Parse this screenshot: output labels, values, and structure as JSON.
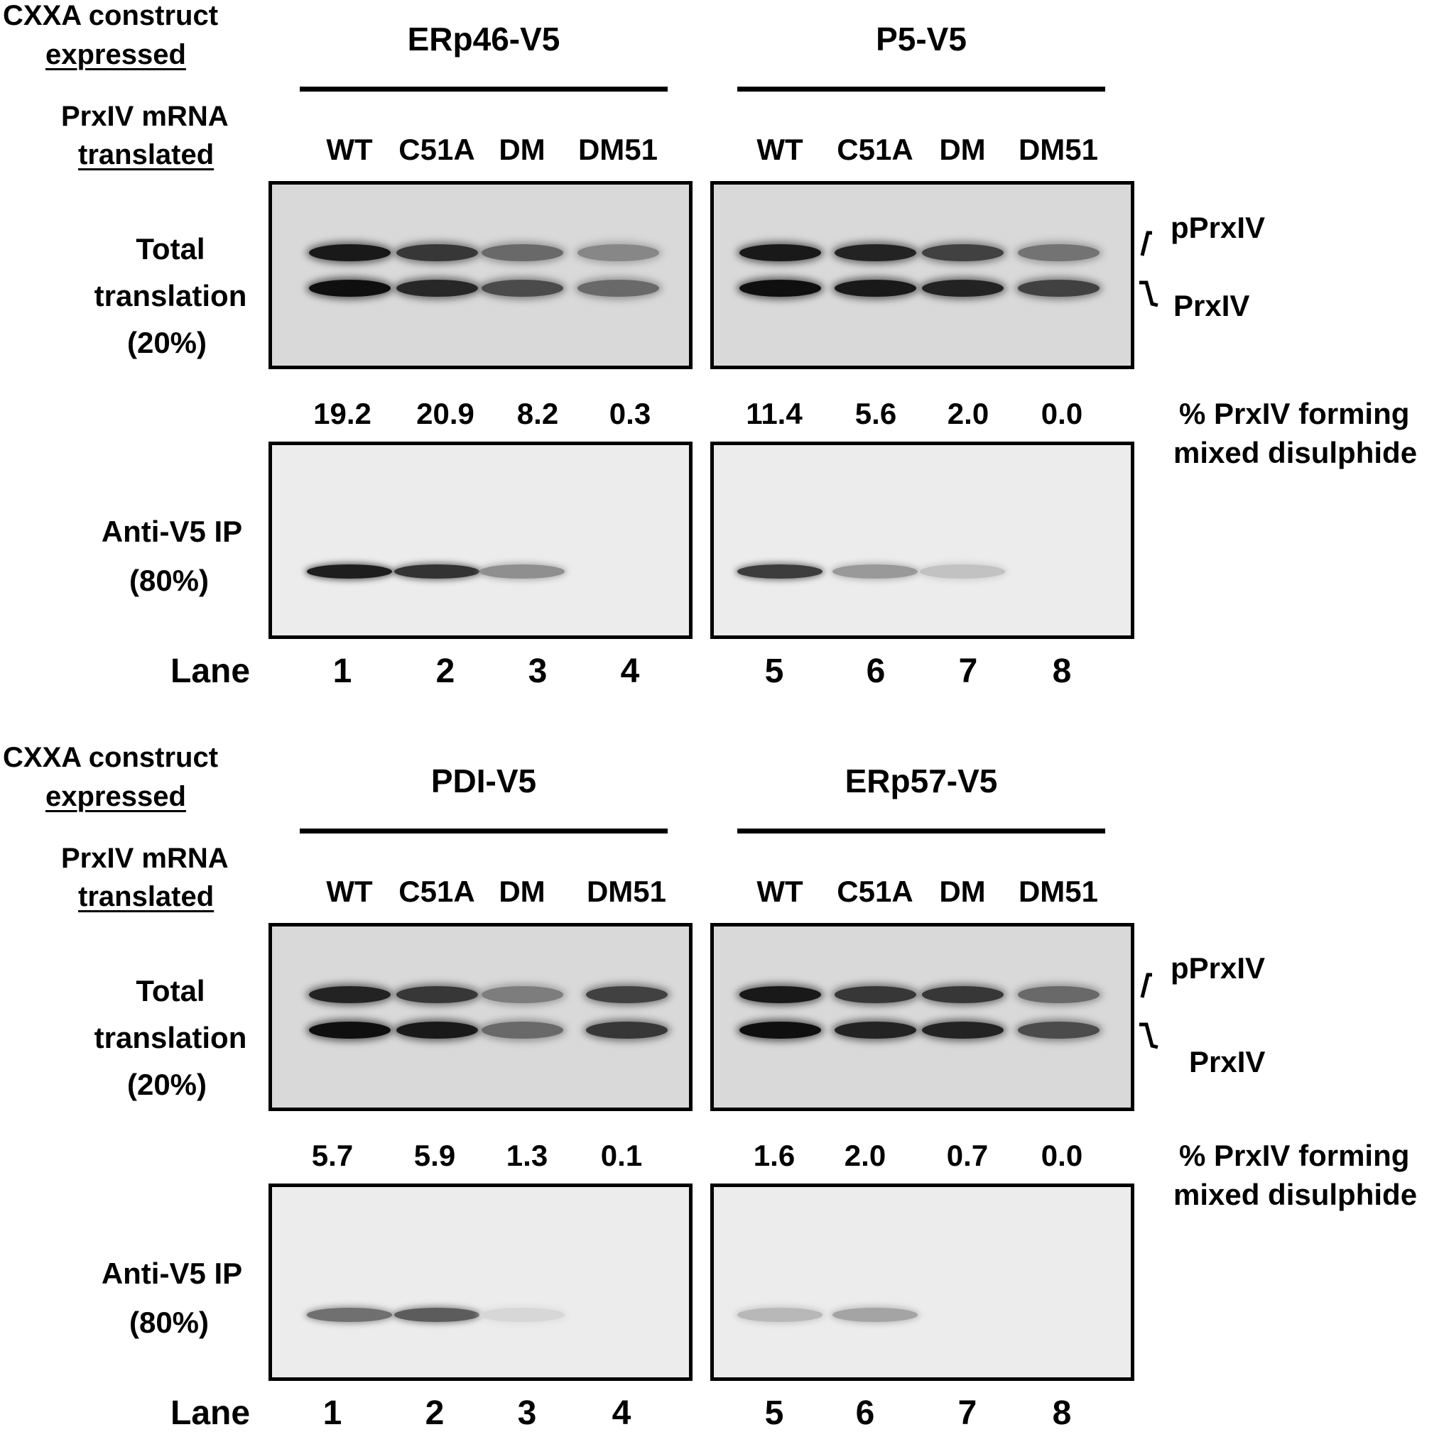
{
  "panels": [
    {
      "construct_label_1": "CXXA construct",
      "construct_label_2": "expressed",
      "mrna_label_1": "PrxIV mRNA",
      "mrna_label_2": "translated",
      "total_label": [
        "Total",
        "translation",
        "(20%)"
      ],
      "ip_label": [
        "Anti-V5  IP",
        "(80%)"
      ],
      "lane_label": "Lane",
      "groups": [
        {
          "construct": "ERp46-V5",
          "lanes": [
            "WT",
            "C51A",
            "DM",
            "DM51"
          ],
          "lane_numbers": [
            "1",
            "2",
            "3",
            "4"
          ],
          "percents": [
            "19.2",
            "20.9",
            "8.2",
            "0.3"
          ],
          "total_bands_upper": [
            0.95,
            0.8,
            0.55,
            0.4
          ],
          "total_bands_lower": [
            1.0,
            0.88,
            0.7,
            0.55
          ],
          "ip_bands": [
            0.95,
            0.85,
            0.4,
            0.0
          ]
        },
        {
          "construct": "P5-V5",
          "lanes": [
            "WT",
            "C51A",
            "DM",
            "DM51"
          ],
          "lane_numbers": [
            "5",
            "6",
            "7",
            "8"
          ],
          "percents": [
            "11.4",
            "5.6",
            "2.0",
            "0.0"
          ],
          "total_bands_upper": [
            0.95,
            0.9,
            0.75,
            0.5
          ],
          "total_bands_lower": [
            1.0,
            0.95,
            0.9,
            0.75
          ],
          "ip_bands": [
            0.8,
            0.35,
            0.15,
            0.0
          ]
        }
      ],
      "percent_caption": [
        "%  PrxIV forming",
        "mixed disulphide"
      ],
      "band_labels": [
        "pPrxIV",
        "PrxIV"
      ]
    },
    {
      "construct_label_1": "CXXA construct",
      "construct_label_2": "expressed",
      "mrna_label_1": "PrxIV mRNA",
      "mrna_label_2": "translated",
      "total_label": [
        "Total",
        "translation",
        "(20%)"
      ],
      "ip_label": [
        "Anti-V5  IP",
        "(80%)"
      ],
      "lane_label": "Lane",
      "groups": [
        {
          "construct": "PDI-V5",
          "lanes": [
            "WT",
            "C51A",
            "DM",
            "DM51"
          ],
          "lane_numbers": [
            "1",
            "2",
            "3",
            "4"
          ],
          "percents": [
            "5.7",
            "5.9",
            "1.3",
            "0.1"
          ],
          "total_bands_upper": [
            0.9,
            0.8,
            0.45,
            0.75
          ],
          "total_bands_lower": [
            1.0,
            0.95,
            0.55,
            0.8
          ],
          "ip_bands": [
            0.55,
            0.65,
            0.05,
            0.0
          ]
        },
        {
          "construct": "ERp57-V5",
          "lanes": [
            "WT",
            "C51A",
            "DM",
            "DM51"
          ],
          "lane_numbers": [
            "5",
            "6",
            "7",
            "8"
          ],
          "percents": [
            "1.6",
            "2.0",
            "0.7",
            "0.0"
          ],
          "total_bands_upper": [
            0.95,
            0.8,
            0.8,
            0.55
          ],
          "total_bands_lower": [
            1.0,
            0.9,
            0.9,
            0.7
          ],
          "ip_bands": [
            0.2,
            0.3,
            0.0,
            0.0
          ]
        }
      ],
      "percent_caption": [
        "%  PrxIV forming",
        "mixed disulphide"
      ],
      "band_labels": [
        "pPrxIV",
        "PrxIV"
      ]
    }
  ]
}
